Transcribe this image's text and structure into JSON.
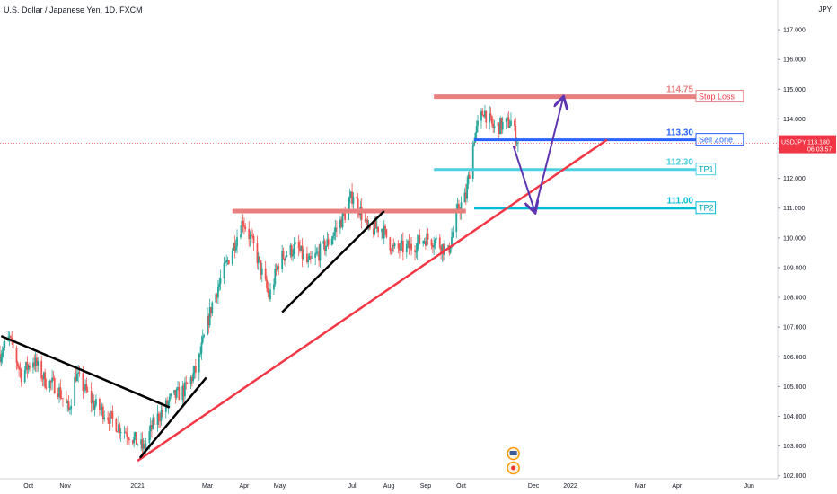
{
  "header": {
    "title": "U.S. Dollar / Japanese Yen, 1D, FXCM",
    "currency": "JPY"
  },
  "price_tag": {
    "symbol": "USDJPY",
    "price": "113.180",
    "countdown": "06:03:57",
    "color": "#f23645"
  },
  "icons": [
    "us-flag-icon",
    "japan-flag-icon"
  ],
  "chart_data": {
    "type": "candlestick",
    "title": "U.S. Dollar / Japanese Yen, 1D, FXCM",
    "ylim": [
      101.9,
      118.0
    ],
    "yticks": [
      "102.000",
      "103.000",
      "104.000",
      "105.000",
      "106.000",
      "107.000",
      "108.000",
      "109.000",
      "110.000",
      "111.000",
      "112.000",
      "113.000",
      "114.000",
      "115.000",
      "116.000",
      "117.000"
    ],
    "xlim": [
      "2020-09-07",
      "2022-06-25"
    ],
    "xticks": [
      {
        "date": "2020-10-01",
        "label": "Oct"
      },
      {
        "date": "2020-11-01",
        "label": "Nov"
      },
      {
        "date": "2021-01-01",
        "label": "2021"
      },
      {
        "date": "2021-03-01",
        "label": "Mar"
      },
      {
        "date": "2021-04-01",
        "label": "Apr"
      },
      {
        "date": "2021-05-01",
        "label": "May"
      },
      {
        "date": "2021-07-01",
        "label": "Jul"
      },
      {
        "date": "2021-08-01",
        "label": "Aug"
      },
      {
        "date": "2021-09-01",
        "label": "Sep"
      },
      {
        "date": "2021-10-01",
        "label": "Oct"
      },
      {
        "date": "2021-12-01",
        "label": "Dec"
      },
      {
        "date": "2022-01-01",
        "label": "2022"
      },
      {
        "date": "2022-03-01",
        "label": "Mar"
      },
      {
        "date": "2022-04-01",
        "label": "Apr"
      },
      {
        "date": "2022-06-01",
        "label": "Jun"
      }
    ],
    "up_color": "#26a69a",
    "down_color": "#ef5350",
    "price_path": [
      [
        "2020-09-07",
        106.1
      ],
      [
        "2020-09-15",
        106.6
      ],
      [
        "2020-09-25",
        105.4
      ],
      [
        "2020-10-05",
        105.9
      ],
      [
        "2020-10-15",
        105.2
      ],
      [
        "2020-10-25",
        105.0
      ],
      [
        "2020-11-04",
        104.2
      ],
      [
        "2020-11-10",
        105.4
      ],
      [
        "2020-11-25",
        104.4
      ],
      [
        "2020-12-05",
        104.1
      ],
      [
        "2020-12-15",
        103.7
      ],
      [
        "2020-12-25",
        103.4
      ],
      [
        "2021-01-06",
        102.9
      ],
      [
        "2021-01-15",
        103.8
      ],
      [
        "2021-01-30",
        104.6
      ],
      [
        "2021-02-10",
        104.9
      ],
      [
        "2021-02-20",
        105.6
      ],
      [
        "2021-03-05",
        107.8
      ],
      [
        "2021-03-15",
        108.9
      ],
      [
        "2021-03-31",
        110.6
      ],
      [
        "2021-04-10",
        109.6
      ],
      [
        "2021-04-22",
        108.0
      ],
      [
        "2021-05-01",
        109.3
      ],
      [
        "2021-05-15",
        109.7
      ],
      [
        "2021-05-25",
        109.1
      ],
      [
        "2021-06-10",
        109.8
      ],
      [
        "2021-06-25",
        110.8
      ],
      [
        "2021-07-02",
        111.5
      ],
      [
        "2021-07-15",
        110.2
      ],
      [
        "2021-07-25",
        110.4
      ],
      [
        "2021-08-05",
        109.6
      ],
      [
        "2021-08-20",
        109.7
      ],
      [
        "2021-09-01",
        110.0
      ],
      [
        "2021-09-10",
        109.9
      ],
      [
        "2021-09-20",
        109.5
      ],
      [
        "2021-09-28",
        110.9
      ],
      [
        "2021-10-05",
        111.4
      ],
      [
        "2021-10-12",
        113.4
      ],
      [
        "2021-10-20",
        114.3
      ],
      [
        "2021-10-28",
        113.7
      ],
      [
        "2021-11-05",
        113.8
      ],
      [
        "2021-11-12",
        113.9
      ],
      [
        "2021-11-18",
        113.2
      ]
    ],
    "horizontal_levels": [
      {
        "name": "Stop Loss",
        "value": 114.75,
        "price_label": "114.75",
        "color": "#e88080",
        "from": "2021-09-08"
      },
      {
        "name": "Sell Zone",
        "value": 113.3,
        "price_label": "113.30",
        "color": "#2962ff",
        "from": "2021-10-12"
      },
      {
        "name": "TP1",
        "value": 112.3,
        "price_label": "112.30",
        "color": "#4dd0e1",
        "from": "2021-09-08"
      },
      {
        "name": "TP2",
        "value": 111.0,
        "price_label": "111.00",
        "color": "#00bcd4",
        "from": "2021-10-12"
      },
      {
        "name": "resistance",
        "value": 110.9,
        "color": "#e88080",
        "from": "2021-03-22",
        "to": "2021-10-05"
      }
    ],
    "trend_lines": [
      {
        "color": "#f23645",
        "points": [
          [
            "2021-01-01",
            102.5
          ],
          [
            "2022-02-01",
            113.3
          ]
        ]
      },
      {
        "color": "#000000",
        "points": [
          [
            "2020-09-08",
            106.7
          ],
          [
            "2021-01-28",
            104.3
          ]
        ]
      },
      {
        "color": "#000000",
        "points": [
          [
            "2021-01-03",
            102.6
          ],
          [
            "2021-02-28",
            105.3
          ]
        ]
      },
      {
        "color": "#000000",
        "points": [
          [
            "2021-05-03",
            107.5
          ],
          [
            "2021-07-28",
            110.9
          ]
        ]
      }
    ],
    "projection": {
      "color": "#5e35b1",
      "points": [
        [
          "2021-11-14",
          113.1
        ],
        [
          "2021-12-02",
          110.9
        ],
        [
          "2021-12-26",
          114.7
        ]
      ]
    }
  }
}
